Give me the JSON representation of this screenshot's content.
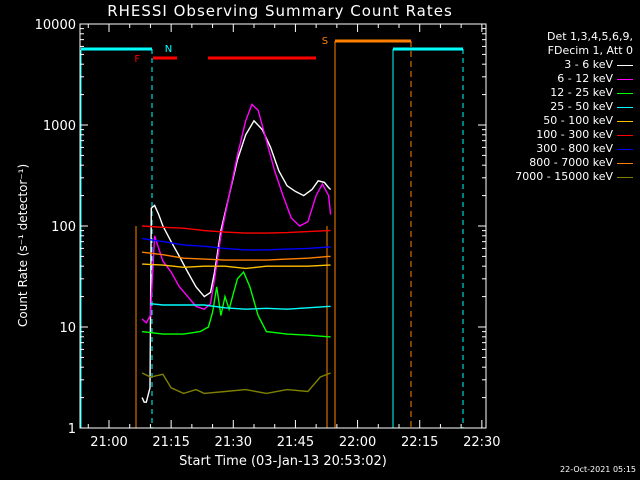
{
  "chart_data": {
    "type": "line",
    "title": "RHESSI Observing Summary Count Rates",
    "xlabel": "Start Time (03-Jan-13 20:53:02)",
    "ylabel": "Count Rate (s⁻¹ detector⁻¹)",
    "x_unit": "minutes after 20:53:02",
    "xlim": [
      0,
      98
    ],
    "ylim": [
      1,
      10000
    ],
    "yscale": "log",
    "x_ticks": [
      {
        "label": "21:00",
        "x": 7
      },
      {
        "label": "21:15",
        "x": 22
      },
      {
        "label": "21:30",
        "x": 37
      },
      {
        "label": "21:45",
        "x": 52
      },
      {
        "label": "22:00",
        "x": 67
      },
      {
        "label": "22:15",
        "x": 82
      },
      {
        "label": "22:30",
        "x": 97
      }
    ],
    "y_ticks": [
      {
        "label": "1",
        "v": 1
      },
      {
        "label": "10",
        "v": 10
      },
      {
        "label": "100",
        "v": 100
      },
      {
        "label": "1000",
        "v": 1000
      },
      {
        "label": "10000",
        "v": 10000
      }
    ],
    "legend_header": [
      "Det 1,3,4,5,6,9,",
      "FDecim 1, Att 0"
    ],
    "series": [
      {
        "name": "3 - 6 keV",
        "color": "#ffffff",
        "points": [
          [
            15,
            2
          ],
          [
            15.5,
            1.8
          ],
          [
            16,
            1.8
          ],
          [
            16.9,
            2.5
          ],
          [
            17.2,
            150
          ],
          [
            18,
            160
          ],
          [
            19,
            130
          ],
          [
            20,
            100
          ],
          [
            22,
            70
          ],
          [
            24,
            50
          ],
          [
            26,
            35
          ],
          [
            28,
            25
          ],
          [
            30,
            20
          ],
          [
            31.5,
            22
          ],
          [
            32.5,
            35
          ],
          [
            34,
            90
          ],
          [
            36,
            200
          ],
          [
            38,
            450
          ],
          [
            40,
            800
          ],
          [
            42,
            1100
          ],
          [
            44,
            900
          ],
          [
            46,
            600
          ],
          [
            48,
            350
          ],
          [
            50,
            250
          ],
          [
            52,
            220
          ],
          [
            54,
            200
          ],
          [
            56,
            230
          ],
          [
            57.5,
            280
          ],
          [
            59,
            270
          ],
          [
            60,
            240
          ],
          [
            60.5,
            230
          ]
        ]
      },
      {
        "name": "6 - 12 keV",
        "color": "#ff00ff",
        "points": [
          [
            15,
            12
          ],
          [
            16,
            11
          ],
          [
            17,
            13
          ],
          [
            18,
            80
          ],
          [
            19,
            60
          ],
          [
            20,
            45
          ],
          [
            22,
            35
          ],
          [
            24,
            25
          ],
          [
            26,
            20
          ],
          [
            28,
            16
          ],
          [
            30,
            15
          ],
          [
            31.5,
            17
          ],
          [
            32.5,
            30
          ],
          [
            34,
            80
          ],
          [
            36,
            200
          ],
          [
            38,
            500
          ],
          [
            40,
            1100
          ],
          [
            41.5,
            1600
          ],
          [
            43,
            1400
          ],
          [
            45,
            700
          ],
          [
            47,
            350
          ],
          [
            49,
            200
          ],
          [
            51,
            120
          ],
          [
            53,
            100
          ],
          [
            55,
            110
          ],
          [
            57,
            200
          ],
          [
            58.5,
            260
          ],
          [
            60,
            200
          ],
          [
            60.5,
            130
          ]
        ]
      },
      {
        "name": "12 - 25 keV",
        "color": "#00ff00",
        "points": [
          [
            15,
            9
          ],
          [
            20,
            8.5
          ],
          [
            25,
            8.5
          ],
          [
            29,
            9
          ],
          [
            31,
            10
          ],
          [
            32,
            14
          ],
          [
            33,
            25
          ],
          [
            34,
            13
          ],
          [
            35,
            20
          ],
          [
            36,
            15
          ],
          [
            38,
            30
          ],
          [
            39.5,
            35
          ],
          [
            41,
            25
          ],
          [
            43,
            13
          ],
          [
            45,
            9
          ],
          [
            50,
            8.5
          ],
          [
            55,
            8.3
          ],
          [
            60,
            8
          ],
          [
            60.5,
            8
          ]
        ]
      },
      {
        "name": "25 - 50 keV",
        "color": "#00ffff",
        "points": [
          [
            17,
            17
          ],
          [
            20,
            16.5
          ],
          [
            25,
            16.5
          ],
          [
            30,
            16.5
          ],
          [
            35,
            15.5
          ],
          [
            40,
            15
          ],
          [
            45,
            15.3
          ],
          [
            50,
            15
          ],
          [
            55,
            15.5
          ],
          [
            60,
            16
          ],
          [
            60.5,
            16
          ]
        ]
      },
      {
        "name": "50 - 100 keV",
        "color": "#ffc000",
        "points": [
          [
            15,
            42
          ],
          [
            20,
            41
          ],
          [
            25,
            39
          ],
          [
            30,
            40
          ],
          [
            35,
            40
          ],
          [
            40,
            38
          ],
          [
            45,
            40
          ],
          [
            50,
            40
          ],
          [
            55,
            40
          ],
          [
            60,
            41
          ],
          [
            60.5,
            41
          ]
        ]
      },
      {
        "name": "100 - 300 keV",
        "color": "#ff0000",
        "points": [
          [
            15,
            100
          ],
          [
            20,
            97
          ],
          [
            25,
            95
          ],
          [
            30,
            90
          ],
          [
            35,
            87
          ],
          [
            40,
            85
          ],
          [
            45,
            85
          ],
          [
            50,
            86
          ],
          [
            55,
            88
          ],
          [
            60,
            90
          ],
          [
            60.5,
            90
          ]
        ]
      },
      {
        "name": "300 - 800 keV",
        "color": "#0000ff",
        "points": [
          [
            15,
            75
          ],
          [
            20,
            70
          ],
          [
            25,
            65
          ],
          [
            30,
            63
          ],
          [
            35,
            60
          ],
          [
            40,
            58
          ],
          [
            45,
            58
          ],
          [
            50,
            59
          ],
          [
            55,
            60
          ],
          [
            60,
            62
          ],
          [
            60.5,
            62
          ]
        ]
      },
      {
        "name": "800 - 7000 keV",
        "color": "#ff8000",
        "points": [
          [
            15,
            55
          ],
          [
            20,
            52
          ],
          [
            25,
            48
          ],
          [
            30,
            47
          ],
          [
            35,
            46
          ],
          [
            40,
            46
          ],
          [
            45,
            46
          ],
          [
            50,
            47
          ],
          [
            55,
            48
          ],
          [
            60,
            50
          ],
          [
            60.5,
            50
          ]
        ]
      },
      {
        "name": "7000 - 15000 keV",
        "color": "#808000",
        "points": [
          [
            15,
            3.5
          ],
          [
            17,
            3.2
          ],
          [
            20,
            3.4
          ],
          [
            22,
            2.5
          ],
          [
            25,
            2.2
          ],
          [
            28,
            2.4
          ],
          [
            30,
            2.2
          ],
          [
            35,
            2.3
          ],
          [
            40,
            2.4
          ],
          [
            45,
            2.2
          ],
          [
            50,
            2.4
          ],
          [
            55,
            2.3
          ],
          [
            58,
            3.2
          ],
          [
            60.5,
            3.5
          ]
        ]
      }
    ],
    "markers": [
      {
        "label": "N",
        "color": "#00ffff",
        "label_x": 19.5
      },
      {
        "label": "F",
        "color": "#ff0000",
        "label_x": 16.5
      },
      {
        "label": "S",
        "color": "#ff8000",
        "label_x": 61.5
      }
    ]
  },
  "footer_stamp": "22-Oct-2021 05:15"
}
